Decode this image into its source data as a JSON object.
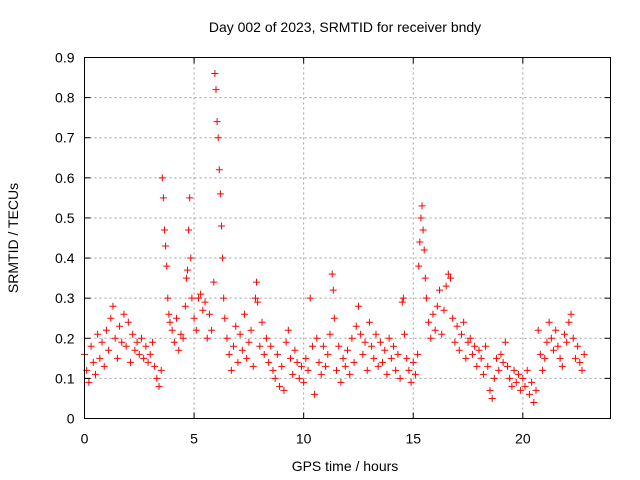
{
  "chart_data": {
    "type": "scatter",
    "title": "Day 002 of 2023, SRMTID for receiver bndy",
    "xlabel": "GPS time / hours",
    "ylabel": "SRMTID / TECUs",
    "xlim": [
      0,
      24
    ],
    "ylim": [
      0,
      0.9
    ],
    "x_ticks": [
      0,
      5,
      10,
      15,
      20
    ],
    "x_tick_labels": [
      "0",
      "5",
      "10",
      "15",
      "20"
    ],
    "y_ticks": [
      0,
      0.1,
      0.2,
      0.3,
      0.4,
      0.5,
      0.6,
      0.7,
      0.8,
      0.9
    ],
    "y_tick_labels": [
      "0",
      "0.1",
      "0.2",
      "0.3",
      "0.4",
      "0.5",
      "0.6",
      "0.7",
      "0.8",
      "0.9"
    ],
    "grid": true,
    "legend": "none",
    "marker": "+",
    "series": [
      {
        "name": "SRMTID",
        "color": "#ff0000",
        "points": [
          [
            0.0,
            0.16
          ],
          [
            0.1,
            0.12
          ],
          [
            0.2,
            0.09
          ],
          [
            0.3,
            0.18
          ],
          [
            0.4,
            0.14
          ],
          [
            0.5,
            0.11
          ],
          [
            0.6,
            0.21
          ],
          [
            0.7,
            0.15
          ],
          [
            0.8,
            0.19
          ],
          [
            0.9,
            0.13
          ],
          [
            1.0,
            0.22
          ],
          [
            1.1,
            0.17
          ],
          [
            1.2,
            0.25
          ],
          [
            1.3,
            0.28
          ],
          [
            1.4,
            0.2
          ],
          [
            1.5,
            0.15
          ],
          [
            1.6,
            0.23
          ],
          [
            1.7,
            0.19
          ],
          [
            1.8,
            0.26
          ],
          [
            1.9,
            0.18
          ],
          [
            2.0,
            0.24
          ],
          [
            2.1,
            0.14
          ],
          [
            2.2,
            0.21
          ],
          [
            2.3,
            0.17
          ],
          [
            2.4,
            0.19
          ],
          [
            2.5,
            0.16
          ],
          [
            2.6,
            0.2
          ],
          [
            2.7,
            0.15
          ],
          [
            2.8,
            0.18
          ],
          [
            2.9,
            0.14
          ],
          [
            3.0,
            0.16
          ],
          [
            3.1,
            0.19
          ],
          [
            3.2,
            0.13
          ],
          [
            3.3,
            0.1
          ],
          [
            3.4,
            0.08
          ],
          [
            3.5,
            0.12
          ],
          [
            3.55,
            0.6
          ],
          [
            3.6,
            0.55
          ],
          [
            3.65,
            0.47
          ],
          [
            3.7,
            0.43
          ],
          [
            3.75,
            0.38
          ],
          [
            3.8,
            0.3
          ],
          [
            3.85,
            0.26
          ],
          [
            3.9,
            0.24
          ],
          [
            4.0,
            0.22
          ],
          [
            4.1,
            0.19
          ],
          [
            4.2,
            0.25
          ],
          [
            4.3,
            0.17
          ],
          [
            4.4,
            0.21
          ],
          [
            4.5,
            0.2
          ],
          [
            4.6,
            0.28
          ],
          [
            4.65,
            0.35
          ],
          [
            4.7,
            0.37
          ],
          [
            4.75,
            0.47
          ],
          [
            4.8,
            0.55
          ],
          [
            4.85,
            0.4
          ],
          [
            4.9,
            0.3
          ],
          [
            5.0,
            0.25
          ],
          [
            5.1,
            0.22
          ],
          [
            5.2,
            0.3
          ],
          [
            5.3,
            0.31
          ],
          [
            5.4,
            0.27
          ],
          [
            5.5,
            0.29
          ],
          [
            5.6,
            0.2
          ],
          [
            5.7,
            0.26
          ],
          [
            5.8,
            0.22
          ],
          [
            5.9,
            0.34
          ],
          [
            5.95,
            0.86
          ],
          [
            6.0,
            0.82
          ],
          [
            6.05,
            0.74
          ],
          [
            6.1,
            0.7
          ],
          [
            6.15,
            0.62
          ],
          [
            6.2,
            0.56
          ],
          [
            6.25,
            0.48
          ],
          [
            6.3,
            0.4
          ],
          [
            6.35,
            0.3
          ],
          [
            6.4,
            0.25
          ],
          [
            6.5,
            0.2
          ],
          [
            6.6,
            0.16
          ],
          [
            6.7,
            0.12
          ],
          [
            6.8,
            0.18
          ],
          [
            6.9,
            0.23
          ],
          [
            7.0,
            0.14
          ],
          [
            7.1,
            0.21
          ],
          [
            7.2,
            0.17
          ],
          [
            7.3,
            0.26
          ],
          [
            7.4,
            0.15
          ],
          [
            7.5,
            0.19
          ],
          [
            7.6,
            0.22
          ],
          [
            7.7,
            0.13
          ],
          [
            7.8,
            0.3
          ],
          [
            7.85,
            0.34
          ],
          [
            7.9,
            0.29
          ],
          [
            8.0,
            0.18
          ],
          [
            8.1,
            0.24
          ],
          [
            8.2,
            0.16
          ],
          [
            8.3,
            0.2
          ],
          [
            8.4,
            0.14
          ],
          [
            8.5,
            0.18
          ],
          [
            8.6,
            0.12
          ],
          [
            8.7,
            0.1
          ],
          [
            8.8,
            0.16
          ],
          [
            8.9,
            0.08
          ],
          [
            9.0,
            0.13
          ],
          [
            9.1,
            0.07
          ],
          [
            9.2,
            0.19
          ],
          [
            9.3,
            0.22
          ],
          [
            9.4,
            0.15
          ],
          [
            9.5,
            0.11
          ],
          [
            9.6,
            0.17
          ],
          [
            9.7,
            0.14
          ],
          [
            9.8,
            0.1
          ],
          [
            9.9,
            0.13
          ],
          [
            10.0,
            0.09
          ],
          [
            10.1,
            0.15
          ],
          [
            10.2,
            0.12
          ],
          [
            10.3,
            0.3
          ],
          [
            10.4,
            0.18
          ],
          [
            10.5,
            0.06
          ],
          [
            10.6,
            0.2
          ],
          [
            10.7,
            0.14
          ],
          [
            10.8,
            0.11
          ],
          [
            10.9,
            0.18
          ],
          [
            11.0,
            0.13
          ],
          [
            11.1,
            0.16
          ],
          [
            11.2,
            0.21
          ],
          [
            11.3,
            0.36
          ],
          [
            11.35,
            0.32
          ],
          [
            11.4,
            0.25
          ],
          [
            11.5,
            0.12
          ],
          [
            11.6,
            0.18
          ],
          [
            11.7,
            0.09
          ],
          [
            11.8,
            0.15
          ],
          [
            11.9,
            0.13
          ],
          [
            12.0,
            0.17
          ],
          [
            12.1,
            0.11
          ],
          [
            12.2,
            0.2
          ],
          [
            12.3,
            0.14
          ],
          [
            12.4,
            0.23
          ],
          [
            12.5,
            0.28
          ],
          [
            12.6,
            0.21
          ],
          [
            12.7,
            0.16
          ],
          [
            12.8,
            0.19
          ],
          [
            12.9,
            0.12
          ],
          [
            13.0,
            0.24
          ],
          [
            13.1,
            0.18
          ],
          [
            13.2,
            0.15
          ],
          [
            13.3,
            0.21
          ],
          [
            13.4,
            0.13
          ],
          [
            13.5,
            0.19
          ],
          [
            13.6,
            0.14
          ],
          [
            13.7,
            0.17
          ],
          [
            13.8,
            0.11
          ],
          [
            13.9,
            0.2
          ],
          [
            14.0,
            0.15
          ],
          [
            14.1,
            0.18
          ],
          [
            14.2,
            0.12
          ],
          [
            14.3,
            0.16
          ],
          [
            14.4,
            0.1
          ],
          [
            14.5,
            0.29
          ],
          [
            14.55,
            0.3
          ],
          [
            14.6,
            0.21
          ],
          [
            14.7,
            0.15
          ],
          [
            14.8,
            0.12
          ],
          [
            14.9,
            0.09
          ],
          [
            15.0,
            0.14
          ],
          [
            15.1,
            0.11
          ],
          [
            15.2,
            0.16
          ],
          [
            15.25,
            0.38
          ],
          [
            15.3,
            0.44
          ],
          [
            15.35,
            0.5
          ],
          [
            15.4,
            0.53
          ],
          [
            15.45,
            0.47
          ],
          [
            15.5,
            0.42
          ],
          [
            15.55,
            0.35
          ],
          [
            15.6,
            0.3
          ],
          [
            15.7,
            0.24
          ],
          [
            15.8,
            0.2
          ],
          [
            15.9,
            0.26
          ],
          [
            16.0,
            0.22
          ],
          [
            16.1,
            0.28
          ],
          [
            16.2,
            0.32
          ],
          [
            16.3,
            0.21
          ],
          [
            16.4,
            0.27
          ],
          [
            16.5,
            0.33
          ],
          [
            16.6,
            0.36
          ],
          [
            16.7,
            0.35
          ],
          [
            16.8,
            0.25
          ],
          [
            16.9,
            0.19
          ],
          [
            17.0,
            0.23
          ],
          [
            17.1,
            0.17
          ],
          [
            17.2,
            0.21
          ],
          [
            17.3,
            0.24
          ],
          [
            17.4,
            0.15
          ],
          [
            17.5,
            0.19
          ],
          [
            17.6,
            0.2
          ],
          [
            17.7,
            0.16
          ],
          [
            17.8,
            0.18
          ],
          [
            17.9,
            0.13
          ],
          [
            18.0,
            0.17
          ],
          [
            18.1,
            0.15
          ],
          [
            18.2,
            0.11
          ],
          [
            18.3,
            0.18
          ],
          [
            18.4,
            0.13
          ],
          [
            18.5,
            0.07
          ],
          [
            18.6,
            0.05
          ],
          [
            18.7,
            0.1
          ],
          [
            18.8,
            0.15
          ],
          [
            18.9,
            0.12
          ],
          [
            19.0,
            0.16
          ],
          [
            19.1,
            0.14
          ],
          [
            19.2,
            0.19
          ],
          [
            19.3,
            0.13
          ],
          [
            19.4,
            0.1
          ],
          [
            19.5,
            0.08
          ],
          [
            19.6,
            0.12
          ],
          [
            19.7,
            0.09
          ],
          [
            19.8,
            0.11
          ],
          [
            19.9,
            0.07
          ],
          [
            20.0,
            0.1
          ],
          [
            20.1,
            0.08
          ],
          [
            20.2,
            0.12
          ],
          [
            20.3,
            0.06
          ],
          [
            20.4,
            0.09
          ],
          [
            20.5,
            0.04
          ],
          [
            20.6,
            0.07
          ],
          [
            20.7,
            0.22
          ],
          [
            20.8,
            0.16
          ],
          [
            20.9,
            0.12
          ],
          [
            21.0,
            0.15
          ],
          [
            21.1,
            0.19
          ],
          [
            21.2,
            0.24
          ],
          [
            21.3,
            0.2
          ],
          [
            21.4,
            0.17
          ],
          [
            21.5,
            0.22
          ],
          [
            21.6,
            0.18
          ],
          [
            21.7,
            0.15
          ],
          [
            21.8,
            0.13
          ],
          [
            21.9,
            0.21
          ],
          [
            22.0,
            0.19
          ],
          [
            22.1,
            0.24
          ],
          [
            22.2,
            0.26
          ],
          [
            22.3,
            0.2
          ],
          [
            22.4,
            0.15
          ],
          [
            22.5,
            0.18
          ],
          [
            22.6,
            0.14
          ],
          [
            22.7,
            0.12
          ],
          [
            22.8,
            0.16
          ]
        ]
      }
    ]
  }
}
